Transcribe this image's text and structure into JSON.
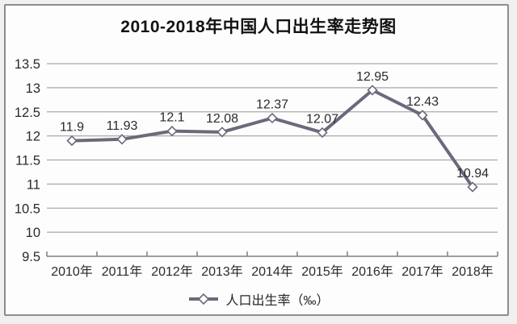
{
  "chart_data": {
    "type": "line",
    "title": "2010-2018年中国人口出生率走势图",
    "categories": [
      "2010年",
      "2011年",
      "2012年",
      "2013年",
      "2014年",
      "2015年",
      "2016年",
      "2017年",
      "2018年"
    ],
    "series": [
      {
        "name": "人口出生率（‰）",
        "values": [
          11.9,
          11.93,
          12.1,
          12.08,
          12.37,
          12.07,
          12.95,
          12.43,
          10.94
        ],
        "data_labels": [
          "11.9",
          "11.93",
          "12.1",
          "12.08",
          "12.37",
          "12.07",
          "12.95",
          "12.43",
          "10.94"
        ]
      }
    ],
    "ylim": [
      9.5,
      13.5
    ],
    "ytick_step": 0.5,
    "yticks": [
      "13.5",
      "13",
      "12.5",
      "12",
      "11.5",
      "11",
      "10.5",
      "10",
      "9.5"
    ],
    "grid": true,
    "legend_position": "bottom",
    "colors": {
      "line": "#6b6a7c",
      "marker_fill": "#ffffff",
      "grid": "#a8a8aa",
      "axis": "#7f7f7f",
      "label_text": "#2a2a2a",
      "title_text": "#121212",
      "card_border": "#8d8d8d",
      "card_bg": "#fdfdfd",
      "page_bg": "#f1f0f1"
    }
  }
}
